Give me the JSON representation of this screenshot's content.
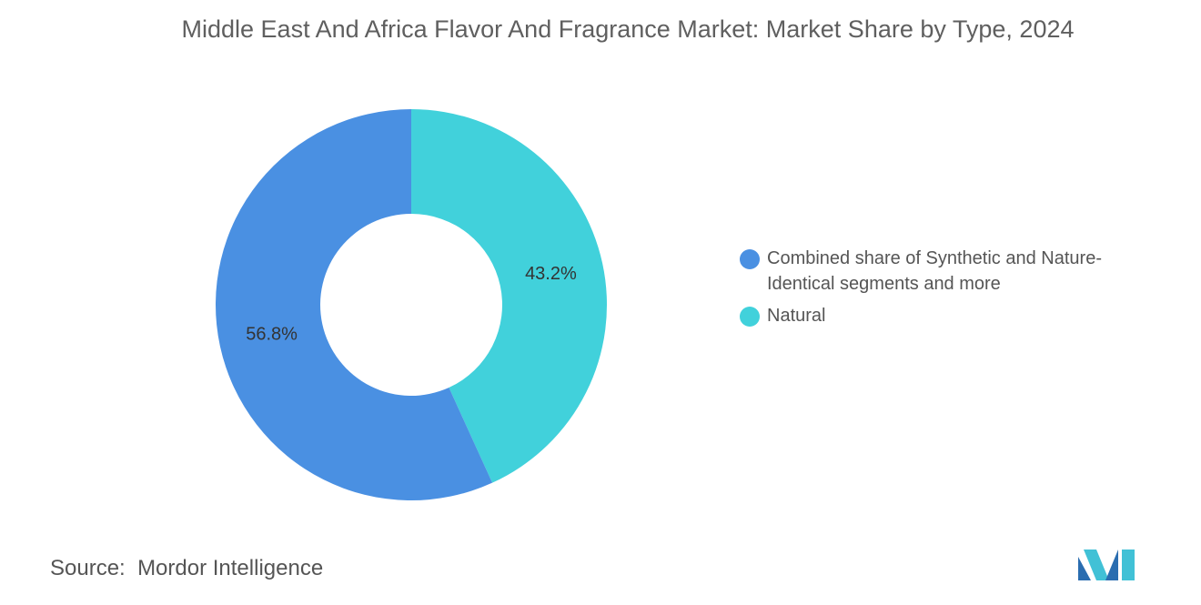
{
  "chart_data": {
    "type": "donut",
    "title": "Middle East And Africa Flavor And Fragrance Market: Market Share by Type, 2024",
    "categories": [
      "Combined share of Synthetic and Nature-Identical segments and more",
      "Natural"
    ],
    "values": [
      56.8,
      43.2
    ],
    "value_labels": [
      "56.8%",
      "43.2%"
    ],
    "colors": [
      "#4a90e2",
      "#41d1db"
    ],
    "legend": "right",
    "source_label": "Source:",
    "source": "Mordor Intelligence"
  }
}
